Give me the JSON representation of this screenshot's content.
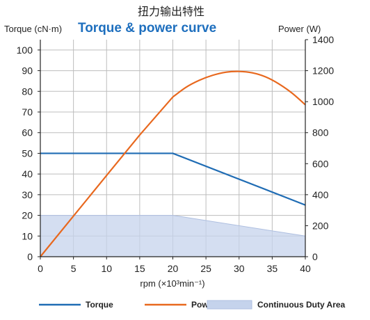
{
  "chart_data": {
    "type": "line",
    "title_cn": "扭力输出特性",
    "title": "Torque & power curve",
    "ylabel_left": "Torque (cN·m)",
    "ylabel_right": "Power (W)",
    "xlabel": "rpm (×10³min⁻¹)",
    "xlim": [
      0,
      40
    ],
    "ylim_left": [
      0,
      105
    ],
    "ylim_right": [
      0,
      1400
    ],
    "x_ticks": [
      0,
      5,
      10,
      15,
      20,
      25,
      30,
      35,
      40
    ],
    "y_left_ticks": [
      0,
      10,
      20,
      30,
      40,
      50,
      60,
      70,
      80,
      90,
      100
    ],
    "y_right_ticks": [
      0,
      200,
      400,
      600,
      800,
      1000,
      1200,
      1400
    ],
    "grid": true,
    "legend_position": "bottom",
    "series": [
      {
        "name": "Torque",
        "axis": "left",
        "color": "#1f6cb4",
        "x": [
          0,
          20,
          40
        ],
        "y": [
          50,
          50,
          25
        ]
      },
      {
        "name": "Power",
        "axis": "right",
        "color": "#e8681e",
        "x": [
          0,
          5,
          10,
          15,
          20,
          22,
          24,
          26,
          28,
          30,
          32,
          34,
          36,
          38,
          40
        ],
        "y": [
          0,
          262,
          524,
          785,
          1030,
          1093,
          1138,
          1170,
          1190,
          1195,
          1186,
          1160,
          1115,
          1055,
          980
        ]
      },
      {
        "name": "Continuous Duty Area",
        "axis": "left",
        "type": "area",
        "color": "#c5d3ec",
        "x": [
          0,
          20,
          40
        ],
        "y": [
          20,
          20,
          10
        ]
      }
    ]
  }
}
